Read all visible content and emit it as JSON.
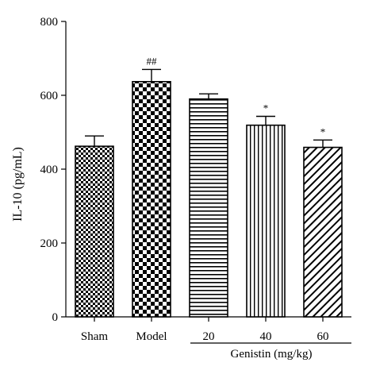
{
  "chart_data": {
    "type": "bar",
    "categories": [
      "Sham",
      "Model",
      "20",
      "40",
      "60"
    ],
    "values": [
      462,
      637,
      590,
      519,
      459
    ],
    "errors": [
      28,
      33,
      14,
      24,
      20
    ],
    "significance": [
      "",
      "##",
      "",
      "*",
      "*"
    ],
    "patterns": [
      "fine-checker",
      "coarse-checker",
      "horizontal-lines",
      "vertical-lines",
      "diagonal-lines"
    ],
    "ylabel": "IL-10 (pg/mL)",
    "xlabel": "",
    "group_label": "Genistin (mg/kg)",
    "group_categories": [
      "20",
      "40",
      "60"
    ],
    "ylim": [
      0,
      800
    ],
    "yticks": [
      0,
      200,
      400,
      600,
      800
    ],
    "grid": false,
    "legend": "none",
    "bar_color": "#000000",
    "background": "#ffffff"
  }
}
